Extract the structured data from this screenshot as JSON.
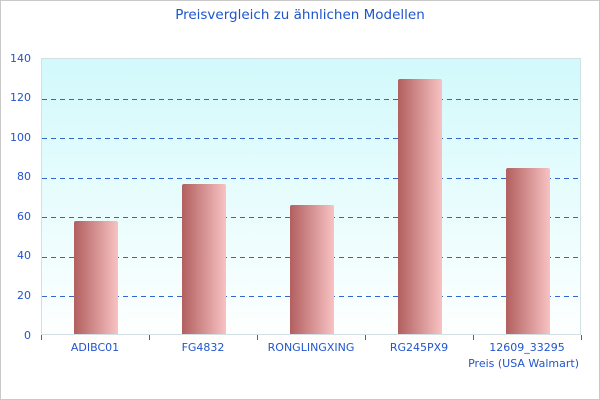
{
  "chart_data": {
    "type": "bar",
    "title": "Preisvergleich zu ähnlichen Modellen",
    "categories": [
      "ADIBC01",
      "FG4832",
      "RONGLINGXING",
      "RG245PX9",
      "12609_33295"
    ],
    "values": [
      57,
      76,
      65,
      129,
      84
    ],
    "xlabel": "Preis (USA Walmart)",
    "ylabel": "",
    "ylim": [
      0,
      140
    ],
    "ytick_step": 20,
    "grid": "horizontal-dashed",
    "legend_position": "none",
    "colors": {
      "title": "#1d55cb",
      "tick_label": "#2255cc",
      "grid": "#3366cc",
      "tick_mark": "#3366cc",
      "bar_gradient_left": "#b25f5f",
      "bar_gradient_right": "#f8c2c2",
      "plot_bg_top": "#d2f9fc",
      "plot_bg_bottom": "#fdfffe",
      "plot_border": "#d2dfe3",
      "frame_border": "#c9c9c9"
    }
  }
}
